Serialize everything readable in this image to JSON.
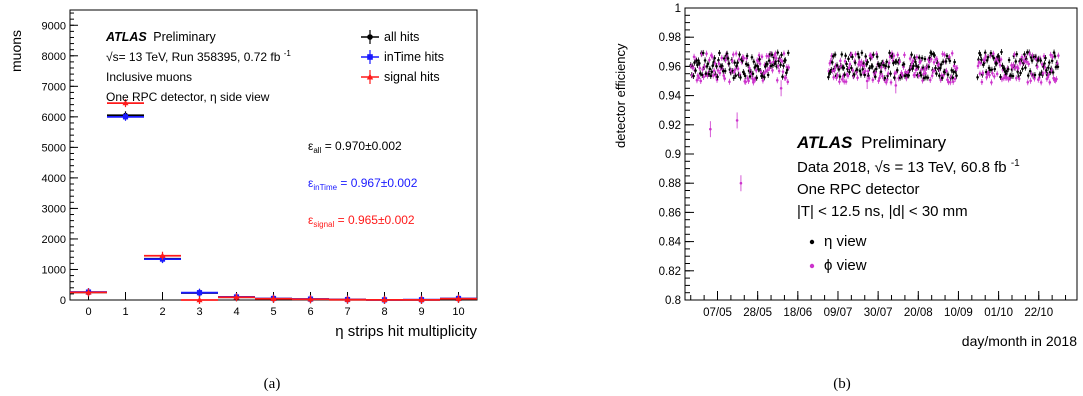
{
  "colors": {
    "all": "#000000",
    "inTime": "#1a1aff",
    "signal": "#ff1a1a",
    "eta": "#000000",
    "phi": "#cc33cc"
  },
  "chart_data": [
    {
      "type": "histogram",
      "panel_label": "(a)",
      "xlabel": "η strips hit multiplicity",
      "ylabel": "muons",
      "xlim": [
        -0.5,
        10.5
      ],
      "ylim": [
        0,
        9500
      ],
      "x_ticks": [
        "0",
        "1",
        "2",
        "3",
        "4",
        "5",
        "6",
        "7",
        "8",
        "9",
        "10"
      ],
      "y_ticks": [
        {
          "v": 0,
          "t": "0"
        },
        {
          "v": 1000,
          "t": "1000"
        },
        {
          "v": 2000,
          "t": "2000"
        },
        {
          "v": 3000,
          "t": "3000"
        },
        {
          "v": 4000,
          "t": "4000"
        },
        {
          "v": 5000,
          "t": "5000"
        },
        {
          "v": 6000,
          "t": "6000"
        },
        {
          "v": 7000,
          "t": "7000"
        },
        {
          "v": 8000,
          "t": "8000"
        },
        {
          "v": 9000,
          "t": "9000"
        }
      ],
      "annotation": {
        "atlas": "ATLAS",
        "atlas_suffix": "Preliminary",
        "line1": "√s= 13 TeV, Run 358395, 0.72 fb",
        "line1_sup": "-1",
        "line2": "Inclusive muons",
        "line3": "One RPC detector, η side view"
      },
      "series": [
        {
          "name": "all hits",
          "color_key": "all",
          "values": [
            250,
            6050,
            1350,
            230,
            90,
            40,
            25,
            10,
            5,
            5,
            40
          ]
        },
        {
          "name": "inTime hits",
          "color_key": "inTime",
          "values": [
            260,
            6000,
            1340,
            240,
            100,
            50,
            30,
            15,
            5,
            10,
            50
          ]
        },
        {
          "name": "signal hits",
          "color_key": "signal",
          "values": [
            250,
            6450,
            1450,
            0,
            90,
            40,
            25,
            10,
            5,
            5,
            40
          ]
        }
      ],
      "efficiencies": [
        {
          "sym": "ε",
          "sub": "all",
          "value": " = 0.970±0.002",
          "color_key": "all"
        },
        {
          "sym": "ε",
          "sub": "inTime",
          "value": " = 0.967±0.002",
          "color_key": "inTime"
        },
        {
          "sym": "ε",
          "sub": "signal",
          "value": " = 0.965±0.002",
          "color_key": "signal"
        }
      ]
    },
    {
      "type": "scatter",
      "panel_label": "(b)",
      "xlabel": "day/month in 2018",
      "ylabel": "detector efficiency",
      "ylim": [
        0.8,
        1.0
      ],
      "x_day_range": [
        110,
        315
      ],
      "y_ticks": [
        {
          "v": 0.8,
          "t": "0.8"
        },
        {
          "v": 0.82,
          "t": "0.82"
        },
        {
          "v": 0.84,
          "t": "0.84"
        },
        {
          "v": 0.86,
          "t": "0.86"
        },
        {
          "v": 0.88,
          "t": "0.88"
        },
        {
          "v": 0.9,
          "t": "0.9"
        },
        {
          "v": 0.92,
          "t": "0.92"
        },
        {
          "v": 0.94,
          "t": "0.94"
        },
        {
          "v": 0.96,
          "t": "0.96"
        },
        {
          "v": 0.98,
          "t": "0.98"
        },
        {
          "v": 1.0,
          "t": "1"
        }
      ],
      "x_ticks": [
        {
          "day": 127,
          "t": "07/05"
        },
        {
          "day": 148,
          "t": "28/05"
        },
        {
          "day": 169,
          "t": "18/06"
        },
        {
          "day": 190,
          "t": "09/07"
        },
        {
          "day": 211,
          "t": "30/07"
        },
        {
          "day": 232,
          "t": "20/08"
        },
        {
          "day": 253,
          "t": "10/09"
        },
        {
          "day": 274,
          "t": "01/10"
        },
        {
          "day": 295,
          "t": "22/10"
        }
      ],
      "data_periods_days": [
        [
          113,
          164
        ],
        [
          185,
          252
        ],
        [
          263,
          305
        ]
      ],
      "eta_mean": 0.961,
      "phi_mean": 0.959,
      "phi_dips": [
        {
          "day": 123,
          "y": 0.917
        },
        {
          "day": 137,
          "y": 0.923
        },
        {
          "day": 139,
          "y": 0.88
        },
        {
          "day": 160,
          "y": 0.945
        },
        {
          "day": 220,
          "y": 0.947
        },
        {
          "day": 205,
          "y": 0.95
        }
      ],
      "annotation": {
        "atlas": "ATLAS",
        "atlas_suffix": "Preliminary",
        "line1": "Data 2018, √s = 13 TeV, 60.8 fb",
        "line1_sup": "-1",
        "line2": "One RPC detector",
        "line3": "|T| < 12.5 ns, |d| < 30 mm"
      },
      "legend": [
        {
          "name": "η view",
          "color_key": "eta"
        },
        {
          "name": "ϕ view",
          "color_key": "phi"
        }
      ]
    }
  ]
}
